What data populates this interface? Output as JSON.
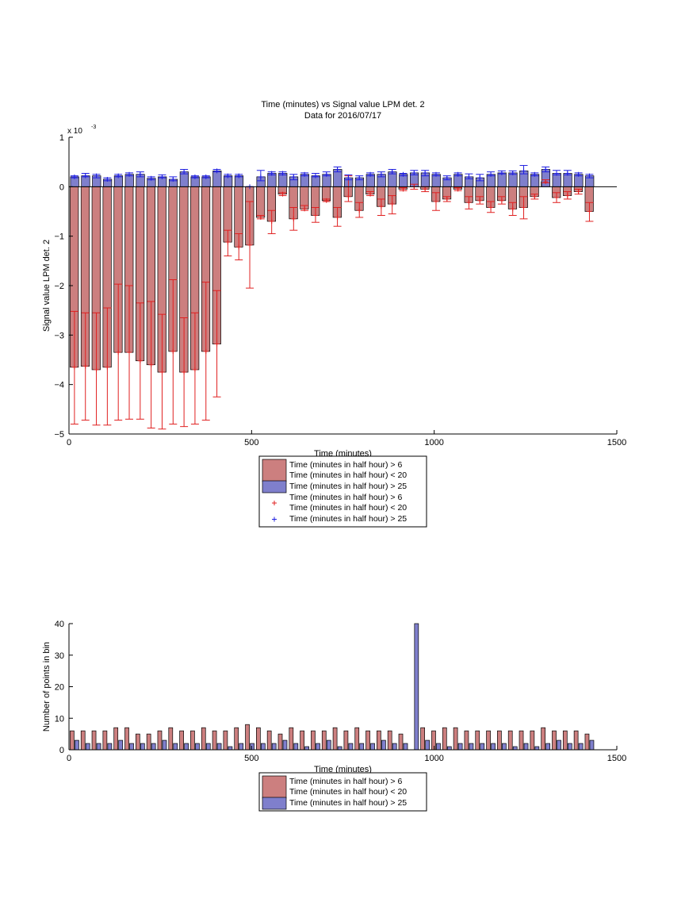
{
  "colors": {
    "red_fill": "#cc7f7f",
    "blue_fill": "#7f7fcc",
    "red_err": "#e02020",
    "blue_err": "#2020e0"
  },
  "chart_data": [
    {
      "type": "bar",
      "title": "Time (minutes) vs Signal value LPM det. 2",
      "subtitle": "Data for 2016/07/17",
      "xlabel": "Time (minutes)",
      "ylabel": "Signal value LPM det. 2",
      "y_exponent_label": "x 10",
      "y_exponent": "-3",
      "xlim": [
        0,
        1500
      ],
      "ylim": [
        -5,
        1
      ],
      "xticks": [
        "0",
        "500",
        "1000",
        "1500"
      ],
      "yticks": [
        "1",
        "0",
        "−1",
        "−2",
        "−3",
        "−4",
        "−5"
      ],
      "legend_position": "below",
      "legend": [
        {
          "kind": "patch",
          "color": "red_fill",
          "lines": [
            "Time (minutes in half hour) > 6",
            "Time (minutes in half hour) < 20"
          ]
        },
        {
          "kind": "patch",
          "color": "blue_fill",
          "lines": [
            "Time (minutes in half hour) > 25"
          ]
        },
        {
          "kind": "marker",
          "color": "red_err",
          "lines": [
            "Time (minutes in half hour) > 6",
            "Time (minutes in half hour) < 20"
          ]
        },
        {
          "kind": "marker",
          "color": "blue_err",
          "lines": [
            "Time (minutes in half hour) > 25"
          ]
        }
      ],
      "x": [
        15,
        45,
        75,
        105,
        135,
        165,
        195,
        225,
        255,
        285,
        315,
        345,
        375,
        405,
        435,
        465,
        495,
        525,
        555,
        585,
        615,
        645,
        675,
        705,
        735,
        765,
        795,
        825,
        855,
        885,
        915,
        945,
        975,
        1005,
        1035,
        1065,
        1095,
        1125,
        1155,
        1185,
        1215,
        1245,
        1275,
        1305,
        1335,
        1365,
        1395,
        1425
      ],
      "series": [
        {
          "name": "Time (minutes in half hour) > 6 Time (minutes in half hour) < 20",
          "values": [
            -3.65,
            -3.63,
            -3.7,
            -3.65,
            -3.35,
            -3.35,
            -3.52,
            -3.6,
            -3.75,
            -3.33,
            -3.75,
            -3.7,
            -3.33,
            -3.18,
            -1.12,
            -1.22,
            -1.18,
            -0.62,
            -0.7,
            -0.15,
            -0.65,
            -0.45,
            -0.58,
            -0.28,
            -0.62,
            -0.2,
            -0.48,
            -0.15,
            -0.4,
            -0.35,
            -0.05,
            0.0,
            -0.05,
            -0.3,
            -0.25,
            -0.05,
            -0.32,
            -0.28,
            -0.42,
            -0.28,
            -0.45,
            -0.42,
            -0.2,
            0.1,
            -0.22,
            -0.18,
            -0.1,
            -0.5
          ],
          "err_low": [
            -4.8,
            -4.72,
            -4.82,
            -4.82,
            -4.72,
            -4.7,
            -4.7,
            -4.88,
            -4.9,
            -4.8,
            -4.85,
            -4.8,
            -4.72,
            -4.25,
            -1.4,
            -1.48,
            -2.05,
            -0.65,
            -0.95,
            -0.18,
            -0.88,
            -0.48,
            -0.72,
            -0.3,
            -0.8,
            -0.3,
            -0.62,
            -0.18,
            -0.58,
            -0.55,
            -0.08,
            -0.05,
            -0.1,
            -0.48,
            -0.3,
            -0.08,
            -0.45,
            -0.35,
            -0.52,
            -0.35,
            -0.58,
            -0.65,
            -0.25,
            0.08,
            -0.32,
            -0.25,
            -0.15,
            -0.7
          ],
          "err_high": [
            -2.52,
            -2.55,
            -2.55,
            -2.45,
            -1.97,
            -2.0,
            -2.35,
            -2.32,
            -2.58,
            -1.88,
            -2.65,
            -2.55,
            -1.93,
            -2.1,
            -0.88,
            -0.95,
            -0.3,
            -0.58,
            -0.48,
            -0.12,
            -0.42,
            -0.38,
            -0.42,
            -0.25,
            -0.42,
            0.22,
            -0.32,
            -0.1,
            -0.25,
            -0.18,
            -0.02,
            0.05,
            0.0,
            -0.12,
            -0.2,
            -0.02,
            -0.2,
            -0.2,
            -0.3,
            -0.2,
            -0.32,
            -0.2,
            -0.15,
            0.14,
            -0.12,
            -0.1,
            -0.05,
            -0.32
          ]
        },
        {
          "name": "Time (minutes in half hour) > 25",
          "values": [
            0.2,
            0.22,
            0.22,
            0.15,
            0.22,
            0.25,
            0.25,
            0.17,
            0.2,
            0.15,
            0.3,
            0.2,
            0.2,
            0.32,
            0.22,
            0.22,
            0.0,
            0.2,
            0.27,
            0.27,
            0.2,
            0.25,
            0.22,
            0.25,
            0.35,
            0.18,
            0.18,
            0.25,
            0.25,
            0.3,
            0.25,
            0.28,
            0.28,
            0.25,
            0.18,
            0.25,
            0.2,
            0.18,
            0.25,
            0.28,
            0.28,
            0.32,
            0.25,
            0.35,
            0.27,
            0.27,
            0.25,
            0.22
          ],
          "err_low": [
            0.18,
            0.2,
            0.18,
            0.12,
            0.2,
            0.22,
            0.2,
            0.14,
            0.18,
            0.12,
            0.26,
            0.18,
            0.18,
            0.3,
            0.2,
            0.2,
            0.0,
            0.12,
            0.24,
            0.24,
            0.14,
            0.22,
            0.2,
            0.22,
            0.3,
            0.14,
            0.14,
            0.22,
            0.2,
            0.26,
            0.22,
            0.24,
            0.22,
            0.22,
            0.14,
            0.22,
            0.16,
            0.12,
            0.22,
            0.26,
            0.25,
            0.26,
            0.22,
            0.3,
            0.24,
            0.24,
            0.22,
            0.18
          ],
          "err_high": [
            0.22,
            0.27,
            0.25,
            0.18,
            0.25,
            0.28,
            0.3,
            0.2,
            0.24,
            0.2,
            0.35,
            0.22,
            0.22,
            0.35,
            0.25,
            0.25,
            0.0,
            0.33,
            0.3,
            0.3,
            0.25,
            0.28,
            0.27,
            0.3,
            0.4,
            0.24,
            0.22,
            0.28,
            0.3,
            0.35,
            0.27,
            0.33,
            0.33,
            0.28,
            0.22,
            0.28,
            0.26,
            0.25,
            0.3,
            0.32,
            0.32,
            0.43,
            0.28,
            0.4,
            0.33,
            0.33,
            0.28,
            0.25
          ]
        }
      ]
    },
    {
      "type": "bar",
      "xlabel": "Time (minutes)",
      "ylabel": "Number of points in bin",
      "xlim": [
        0,
        1500
      ],
      "ylim": [
        0,
        40
      ],
      "xticks": [
        "0",
        "500",
        "1000",
        "1500"
      ],
      "yticks": [
        "0",
        "10",
        "20",
        "30",
        "40"
      ],
      "legend_position": "below",
      "legend": [
        {
          "kind": "patch",
          "color": "red_fill",
          "lines": [
            "Time (minutes in half hour) > 6",
            "Time (minutes in half hour) < 20"
          ]
        },
        {
          "kind": "patch",
          "color": "blue_fill",
          "lines": [
            "Time (minutes in half hour) > 25"
          ]
        }
      ],
      "x": [
        15,
        45,
        75,
        105,
        135,
        165,
        195,
        225,
        255,
        285,
        315,
        345,
        375,
        405,
        435,
        465,
        495,
        525,
        555,
        585,
        615,
        645,
        675,
        705,
        735,
        765,
        795,
        825,
        855,
        885,
        915,
        945,
        975,
        1005,
        1035,
        1065,
        1095,
        1125,
        1155,
        1185,
        1215,
        1245,
        1275,
        1305,
        1335,
        1365,
        1395,
        1425
      ],
      "series": [
        {
          "name": "Time (minutes in half hour) > 6 Time (minutes in half hour) < 20",
          "values": [
            6,
            6,
            6,
            6,
            7,
            7,
            5,
            5,
            6,
            7,
            6,
            6,
            7,
            6,
            6,
            7,
            8,
            7,
            6,
            5,
            7,
            6,
            6,
            6,
            7,
            6,
            7,
            6,
            6,
            6,
            5,
            0,
            7,
            6,
            7,
            7,
            6,
            6,
            6,
            6,
            6,
            6,
            6,
            7,
            6,
            6,
            6,
            5
          ]
        },
        {
          "name": "Time (minutes in half hour) > 25",
          "values": [
            3,
            2,
            2,
            2,
            3,
            2,
            2,
            2,
            3,
            2,
            2,
            2,
            2,
            2,
            1,
            2,
            2,
            2,
            2,
            3,
            2,
            1,
            2,
            3,
            1,
            2,
            2,
            2,
            3,
            2,
            2,
            40,
            3,
            2,
            1,
            2,
            2,
            2,
            2,
            2,
            1,
            2,
            1,
            2,
            3,
            2,
            2,
            3
          ]
        }
      ]
    }
  ]
}
